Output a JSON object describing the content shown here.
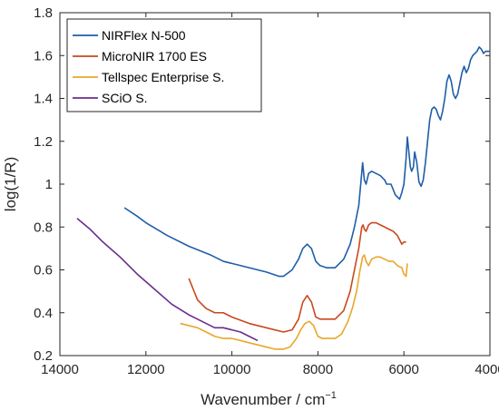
{
  "chart_data": {
    "type": "line",
    "xlabel": "Wavenumber / cm",
    "xlabel_superscript": "−1",
    "ylabel": "log(1/R)",
    "xlim": [
      14000,
      4000
    ],
    "ylim": [
      0.2,
      1.8
    ],
    "x_reversed": true,
    "grid": false,
    "legend_position": "top-left",
    "x_ticks": [
      14000,
      12000,
      10000,
      8000,
      6000,
      4000
    ],
    "x_tick_labels": [
      "14000",
      "12000",
      "10000",
      "8000",
      "6000",
      "4000"
    ],
    "y_ticks": [
      0.2,
      0.4,
      0.6,
      0.8,
      1.0,
      1.2,
      1.4,
      1.6,
      1.8
    ],
    "y_tick_labels": [
      "0.2",
      "0.4",
      "0.6",
      "0.8",
      "1",
      "1.2",
      "1.4",
      "1.6",
      "1.8"
    ],
    "series": [
      {
        "name": "NIRFlex N-500",
        "color": "#1f5ea8",
        "x": [
          12500,
          12200,
          12000,
          11500,
          11000,
          10500,
          10200,
          10000,
          9600,
          9200,
          8900,
          8800,
          8600,
          8450,
          8350,
          8250,
          8150,
          8050,
          7950,
          7800,
          7600,
          7400,
          7250,
          7150,
          7050,
          7000,
          6960,
          6920,
          6880,
          6820,
          6750,
          6650,
          6550,
          6450,
          6400,
          6300,
          6200,
          6150,
          6100,
          6050,
          6000,
          5950,
          5920,
          5880,
          5850,
          5820,
          5780,
          5750,
          5700,
          5650,
          5600,
          5550,
          5500,
          5450,
          5400,
          5350,
          5300,
          5250,
          5200,
          5150,
          5100,
          5050,
          5000,
          4950,
          4900,
          4850,
          4800,
          4750,
          4700,
          4650,
          4600,
          4550,
          4500,
          4450,
          4400,
          4350,
          4300,
          4250,
          4200,
          4150,
          4100,
          4050,
          4000
        ],
        "y": [
          0.89,
          0.85,
          0.82,
          0.76,
          0.71,
          0.67,
          0.64,
          0.63,
          0.61,
          0.59,
          0.57,
          0.57,
          0.6,
          0.65,
          0.7,
          0.72,
          0.7,
          0.64,
          0.62,
          0.61,
          0.61,
          0.65,
          0.72,
          0.8,
          0.9,
          1.01,
          1.1,
          1.02,
          1.0,
          1.05,
          1.06,
          1.05,
          1.04,
          1.02,
          1.0,
          1.0,
          0.95,
          0.94,
          0.93,
          0.96,
          1.0,
          1.12,
          1.22,
          1.14,
          1.08,
          1.06,
          1.08,
          1.15,
          1.1,
          1.01,
          0.99,
          1.02,
          1.1,
          1.2,
          1.3,
          1.35,
          1.36,
          1.35,
          1.32,
          1.3,
          1.34,
          1.4,
          1.48,
          1.51,
          1.48,
          1.42,
          1.4,
          1.42,
          1.47,
          1.52,
          1.55,
          1.52,
          1.54,
          1.58,
          1.6,
          1.61,
          1.62,
          1.64,
          1.63,
          1.61,
          1.62,
          1.62,
          1.62
        ]
      },
      {
        "name": "MicroNIR 1700 ES",
        "color": "#c9481d",
        "x": [
          11000,
          10900,
          10800,
          10600,
          10400,
          10200,
          10000,
          9600,
          9200,
          8800,
          8600,
          8450,
          8350,
          8250,
          8150,
          8050,
          7950,
          7800,
          7600,
          7400,
          7250,
          7150,
          7050,
          6980,
          6950,
          6920,
          6880,
          6820,
          6750,
          6650,
          6550,
          6450,
          6350,
          6250,
          6150,
          6100,
          6050,
          6000,
          5950
        ],
        "y": [
          0.56,
          0.51,
          0.46,
          0.42,
          0.4,
          0.4,
          0.38,
          0.35,
          0.33,
          0.31,
          0.32,
          0.37,
          0.45,
          0.48,
          0.45,
          0.38,
          0.37,
          0.37,
          0.37,
          0.41,
          0.5,
          0.6,
          0.7,
          0.8,
          0.81,
          0.79,
          0.78,
          0.81,
          0.82,
          0.82,
          0.81,
          0.8,
          0.79,
          0.78,
          0.76,
          0.74,
          0.72,
          0.73,
          0.73
        ]
      },
      {
        "name": "Tellspec Enterprise S.",
        "color": "#e9a72a",
        "x": [
          11200,
          11000,
          10800,
          10600,
          10400,
          10200,
          10000,
          9800,
          9600,
          9400,
          9200,
          9000,
          8800,
          8650,
          8500,
          8400,
          8300,
          8200,
          8100,
          8000,
          7900,
          7750,
          7600,
          7450,
          7300,
          7200,
          7100,
          7020,
          6960,
          6920,
          6880,
          6820,
          6750,
          6650,
          6550,
          6450,
          6350,
          6250,
          6150,
          6050,
          6000,
          5950,
          5920
        ],
        "y": [
          0.35,
          0.34,
          0.33,
          0.31,
          0.29,
          0.28,
          0.28,
          0.27,
          0.26,
          0.25,
          0.24,
          0.23,
          0.23,
          0.24,
          0.28,
          0.32,
          0.35,
          0.36,
          0.34,
          0.29,
          0.28,
          0.28,
          0.28,
          0.3,
          0.36,
          0.42,
          0.5,
          0.6,
          0.66,
          0.67,
          0.64,
          0.62,
          0.65,
          0.66,
          0.66,
          0.65,
          0.64,
          0.64,
          0.62,
          0.61,
          0.58,
          0.57,
          0.63
        ]
      },
      {
        "name": "SCiO S.",
        "color": "#6a2e8c",
        "x": [
          13600,
          13300,
          13000,
          12600,
          12200,
          11800,
          11400,
          11000,
          10800,
          10600,
          10400,
          10200,
          10000,
          9800,
          9600,
          9400
        ],
        "y": [
          0.84,
          0.79,
          0.73,
          0.66,
          0.58,
          0.51,
          0.44,
          0.39,
          0.37,
          0.35,
          0.33,
          0.33,
          0.32,
          0.31,
          0.29,
          0.27
        ]
      }
    ]
  }
}
